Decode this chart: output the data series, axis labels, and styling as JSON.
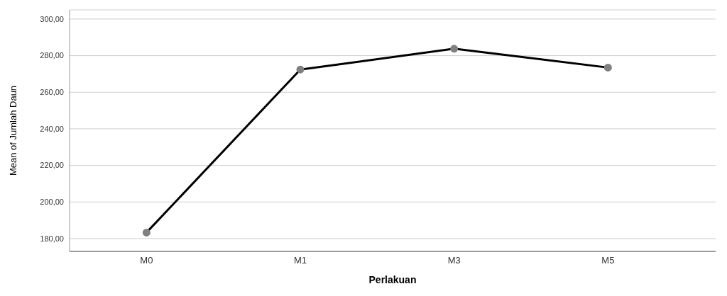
{
  "chart_data": {
    "type": "line",
    "xlabel": "Perlakuan",
    "ylabel": "Mean of Jumlah Daun",
    "categories": [
      "M0",
      "M1",
      "M3",
      "M5"
    ],
    "series": [
      {
        "color": "#000000",
        "values": [
          183.3,
          272.4,
          283.8,
          273.5
        ]
      }
    ],
    "ylim": [
      173,
      305
    ],
    "yticks": [
      {
        "value": 180,
        "label": "180,00"
      },
      {
        "value": 200,
        "label": "200,00"
      },
      {
        "value": 220,
        "label": "220,00"
      },
      {
        "value": 240,
        "label": "240,00"
      },
      {
        "value": 260,
        "label": "260,00"
      },
      {
        "value": 280,
        "label": "280,00"
      },
      {
        "value": 300,
        "label": "300,00"
      }
    ],
    "grid": "y",
    "marker": "circle",
    "line_style": "solid"
  }
}
